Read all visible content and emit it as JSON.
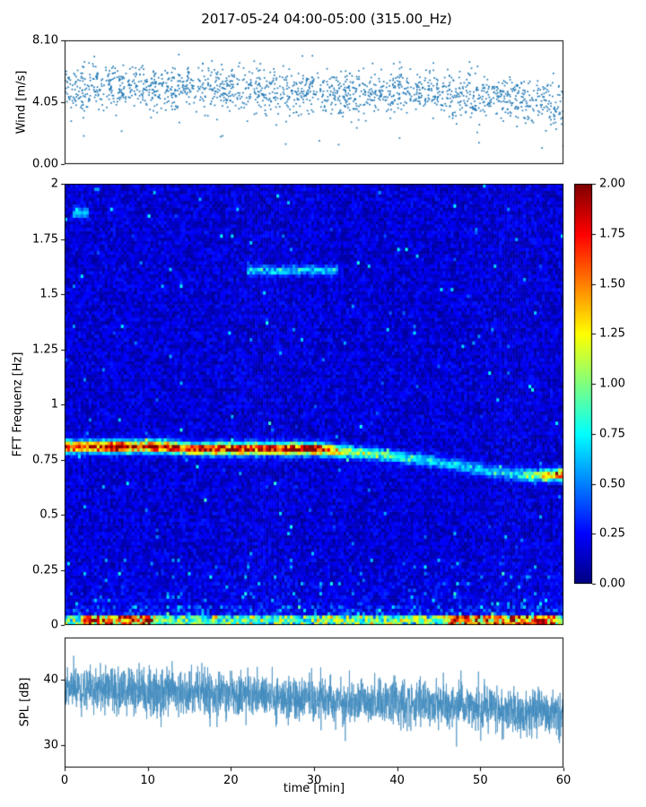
{
  "title": "2017-05-24 04:00-05:00 (315.00_Hz)",
  "xaxis": {
    "label": "time [min]",
    "lim": [
      0,
      60
    ],
    "tick_values": [
      0,
      10,
      20,
      30,
      40,
      50,
      60
    ],
    "tick_labels": [
      "0",
      "10",
      "20",
      "30",
      "40",
      "50",
      "60"
    ]
  },
  "colorbar": {
    "colormap": "jet",
    "lim": [
      0,
      2
    ],
    "tick_values": [
      2,
      1.75,
      1.5,
      1.25,
      1,
      0.75,
      0.5,
      0.25,
      0
    ],
    "tick_labels": [
      "2.00",
      "1.75",
      "1.50",
      "1.25",
      "1.00",
      "0.75",
      "0.50",
      "0.25",
      "0.00"
    ]
  },
  "colors": {
    "scatter": "#1f77b4",
    "line": "#3f89bd",
    "spine": "#000000",
    "background": "#ffffff"
  },
  "chart_data": [
    {
      "type": "scatter",
      "name": "wind",
      "ylabel": "Wind [m/s]",
      "ylim": [
        0,
        8.1
      ],
      "ytick_values": [
        8.1,
        4.05,
        0
      ],
      "ytick_labels": [
        "8.10",
        "4.05",
        "0.00"
      ],
      "x_range": [
        0,
        60
      ],
      "n_points": 1700,
      "trend_x": [
        0,
        5,
        10,
        15,
        20,
        25,
        30,
        35,
        40,
        45,
        50,
        55,
        60
      ],
      "trend_y": [
        5.0,
        5.1,
        4.9,
        5.0,
        4.9,
        4.8,
        4.7,
        4.6,
        4.6,
        4.7,
        4.5,
        4.2,
        4.0
      ],
      "noise_sd": 0.75,
      "outlier_rate": 0.008,
      "marker_color": "#1f77b4"
    },
    {
      "type": "heatmap",
      "name": "spectrogram",
      "ylabel": "FFT Frequenz [Hz]",
      "ylim": [
        0,
        2
      ],
      "ytick_values": [
        2,
        1.75,
        1.5,
        1.25,
        1,
        0.75,
        0.5,
        0.25,
        0
      ],
      "ytick_labels": [
        "2",
        "1.75",
        "1.5",
        "1.25",
        "1",
        "0.75",
        "0.5",
        "0.25",
        "0"
      ],
      "x_range": [
        0,
        60
      ],
      "clim": [
        0,
        2
      ],
      "colormap": "jet",
      "background_noise": [
        0.04,
        0.3
      ],
      "tone_track": {
        "x": [
          0,
          3,
          6,
          9,
          12,
          15,
          18,
          21,
          24,
          27,
          30,
          33,
          36,
          39,
          42,
          45,
          48,
          51,
          54,
          57,
          60
        ],
        "freq": [
          0.81,
          0.81,
          0.81,
          0.81,
          0.81,
          0.8,
          0.8,
          0.8,
          0.8,
          0.8,
          0.8,
          0.79,
          0.78,
          0.77,
          0.755,
          0.74,
          0.72,
          0.7,
          0.685,
          0.68,
          0.685
        ],
        "intensity": [
          1.8,
          1.5,
          1.9,
          1.6,
          1.8,
          1.5,
          1.7,
          1.9,
          1.6,
          1.8,
          2.0,
          1.1,
          0.85,
          0.75,
          0.65,
          0.55,
          0.5,
          0.45,
          0.55,
          1.0,
          1.6
        ],
        "width_hz": 0.018
      },
      "surface_band": {
        "freq_below": 0.04,
        "base_intensity": 0.9,
        "bright_intervals": [
          [
            2,
            11
          ],
          [
            46,
            59
          ]
        ]
      },
      "faint_tone": {
        "freq": 1.61,
        "x_start": 22,
        "x_end": 33,
        "intensity": 0.5
      },
      "top_left_mark": {
        "freq": 1.87,
        "x_start": 1,
        "x_end": 3,
        "intensity": 0.5
      }
    },
    {
      "type": "line",
      "name": "spl",
      "ylabel": "SPL [dB]",
      "ylim": [
        26.5,
        46.5
      ],
      "ytick_values": [
        40,
        30
      ],
      "ytick_labels": [
        "40",
        "30"
      ],
      "x_range": [
        0,
        60
      ],
      "n_points": 2800,
      "trend_x": [
        0,
        5,
        10,
        15,
        20,
        25,
        30,
        35,
        40,
        45,
        50,
        55,
        60
      ],
      "trend_y": [
        38.5,
        38.8,
        38.2,
        37.8,
        38.0,
        37.5,
        37.0,
        36.8,
        36.5,
        36.3,
        35.8,
        35.0,
        35.2
      ],
      "noise_sd": 1.7,
      "line_color": "#3f89bd"
    }
  ]
}
